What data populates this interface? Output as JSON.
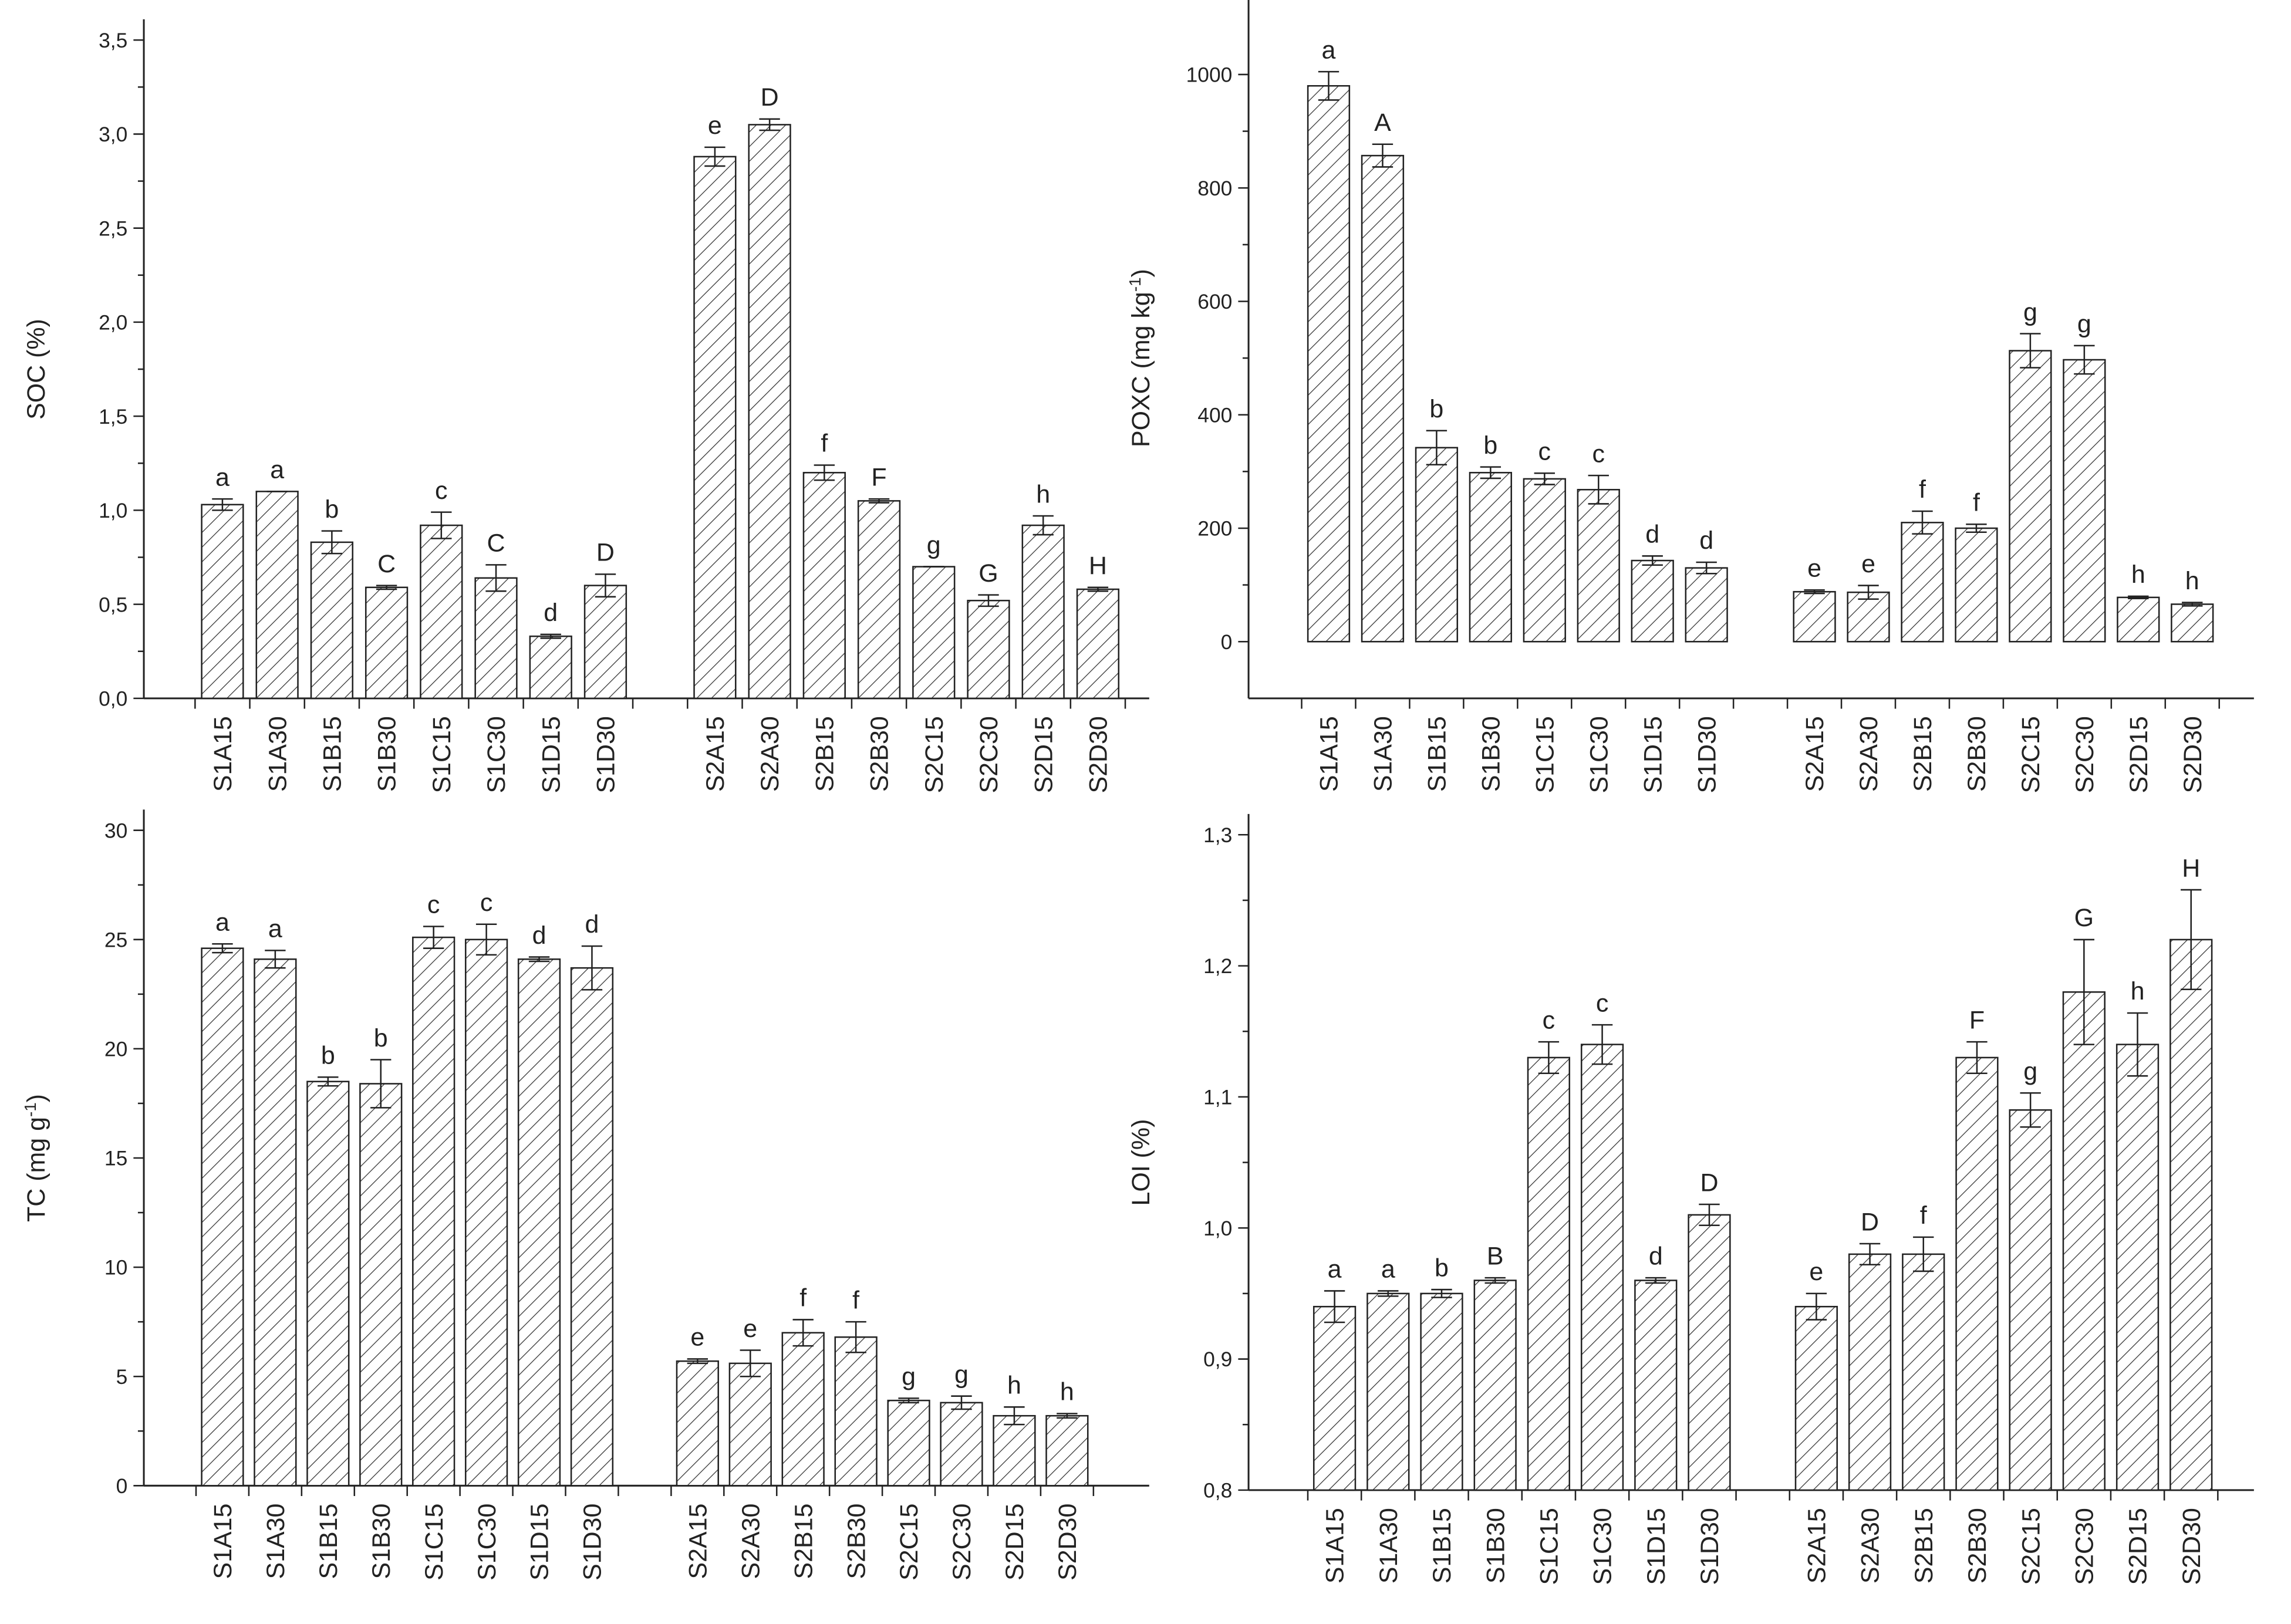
{
  "chart_data": [
    {
      "type": "bar",
      "y_label": [
        "SOC (%)"
      ],
      "categories": [
        "S1A15",
        "S1A30",
        "S1B15",
        "S1B30",
        "S1C15",
        "S1C30",
        "S1D15",
        "S1D30",
        null,
        "S2A15",
        "S2A30",
        "S2B15",
        "S2B30",
        "S2C15",
        "S2C30",
        "S2D15",
        "S2D30"
      ],
      "values": [
        1.03,
        1.1,
        0.83,
        0.59,
        0.92,
        0.64,
        0.33,
        0.6,
        null,
        2.88,
        3.05,
        1.2,
        1.05,
        0.7,
        0.52,
        0.92,
        0.58
      ],
      "errors": [
        0.03,
        0.0,
        0.06,
        0.01,
        0.07,
        0.07,
        0.01,
        0.06,
        null,
        0.05,
        0.03,
        0.04,
        0.01,
        0.0,
        0.03,
        0.05,
        0.01
      ],
      "letters": [
        "a",
        "a",
        "b",
        "C",
        "c",
        "C",
        "d",
        "D",
        null,
        "e",
        "D",
        "f",
        "F",
        "g",
        "G",
        "h",
        "H"
      ],
      "ylim": [
        0,
        3.5
      ],
      "yticks": [
        {
          "value": 0,
          "label": "0,0"
        },
        {
          "value": 0.5,
          "label": "0,5"
        },
        {
          "value": 1,
          "label": "1,0"
        },
        {
          "value": 1.5,
          "label": "1,5"
        },
        {
          "value": 2,
          "label": "2,0"
        },
        {
          "value": 2.5,
          "label": "2,5"
        },
        {
          "value": 3,
          "label": "3,0"
        },
        {
          "value": 3.5,
          "label": "3,5"
        }
      ]
    },
    {
      "type": "bar",
      "y_label": [
        "POXC (mg kg",
        "-1",
        ")"
      ],
      "categories": [
        "S1A15",
        "S1A30",
        "S1B15",
        "S1B30",
        "S1C15",
        "S1C30",
        "S1D15",
        "S1D30",
        null,
        "S2A15",
        "S2A30",
        "S2B15",
        "S2B30",
        "S2C15",
        "S2C30",
        "S2D15",
        "S2D30"
      ],
      "values": [
        980,
        857,
        342,
        298,
        287,
        268,
        143,
        130,
        null,
        88,
        87,
        210,
        200,
        513,
        497,
        78,
        66
      ],
      "errors": [
        25,
        20,
        30,
        10,
        10,
        25,
        8,
        10,
        null,
        3,
        12,
        20,
        7,
        30,
        25,
        2,
        3
      ],
      "letters": [
        "a",
        "A",
        "b",
        "b",
        "c",
        "c",
        "d",
        "d",
        null,
        "e",
        "e",
        "f",
        "f",
        "g",
        "g",
        "h",
        "h"
      ],
      "ylim": [
        -100,
        1100
      ],
      "yticks": [
        0,
        200,
        400,
        600,
        800,
        1000
      ]
    },
    {
      "type": "bar",
      "y_label": [
        "TC (mg g",
        "-1",
        ")"
      ],
      "categories": [
        "S1A15",
        "S1A30",
        "S1B15",
        "S1B30",
        "S1C15",
        "S1C30",
        "S1D15",
        "S1D30",
        null,
        "S2A15",
        "S2A30",
        "S2B15",
        "S2B30",
        "S2C15",
        "S2C30",
        "S2D15",
        "S2D30"
      ],
      "values": [
        24.6,
        24.1,
        18.5,
        18.4,
        25.1,
        25.0,
        24.1,
        23.7,
        null,
        5.7,
        5.6,
        7.0,
        6.8,
        3.9,
        3.8,
        3.2,
        3.2
      ],
      "errors": [
        0.2,
        0.4,
        0.2,
        1.1,
        0.5,
        0.7,
        0.1,
        1.0,
        null,
        0.1,
        0.6,
        0.6,
        0.7,
        0.1,
        0.3,
        0.4,
        0.1
      ],
      "letters": [
        "a",
        "a",
        "b",
        "b",
        "c",
        "c",
        "d",
        "d",
        null,
        "e",
        "e",
        "f",
        "f",
        "g",
        "g",
        "h",
        "h"
      ],
      "ylim": [
        0,
        30
      ],
      "yticks": [
        0,
        5,
        10,
        15,
        20,
        25,
        30
      ]
    },
    {
      "type": "bar",
      "y_label": [
        "LOI (%)"
      ],
      "categories": [
        "S1A15",
        "S1A30",
        "S1B15",
        "S1B30",
        "S1C15",
        "S1C30",
        "S1D15",
        "S1D30",
        null,
        "S2A15",
        "S2A30",
        "S2B15",
        "S2B30",
        "S2C15",
        "S2C30",
        "S2D15",
        "S2D30"
      ],
      "values": [
        0.94,
        0.95,
        0.95,
        0.96,
        1.13,
        1.14,
        0.96,
        1.01,
        null,
        0.94,
        0.98,
        0.98,
        1.13,
        1.09,
        1.18,
        1.14,
        1.22
      ],
      "errors": [
        0.012,
        0.002,
        0.003,
        0.002,
        0.012,
        0.015,
        0.002,
        0.008,
        null,
        0.01,
        0.008,
        0.013,
        0.012,
        0.013,
        0.04,
        0.024,
        0.038
      ],
      "letters": [
        "a",
        "a",
        "b",
        "B",
        "c",
        "c",
        "d",
        "D",
        null,
        "e",
        "D",
        "f",
        "F",
        "g",
        "G",
        "h",
        "H"
      ],
      "ylim": [
        0.8,
        1.3
      ],
      "yticks": [
        {
          "value": 0.8,
          "label": "0,8"
        },
        {
          "value": 0.9,
          "label": "0,9"
        },
        {
          "value": 1,
          "label": "1,0"
        },
        {
          "value": 1.1,
          "label": "1,1"
        },
        {
          "value": 1.2,
          "label": "1,2"
        },
        {
          "value": 1.3,
          "label": "1,3"
        }
      ]
    }
  ]
}
